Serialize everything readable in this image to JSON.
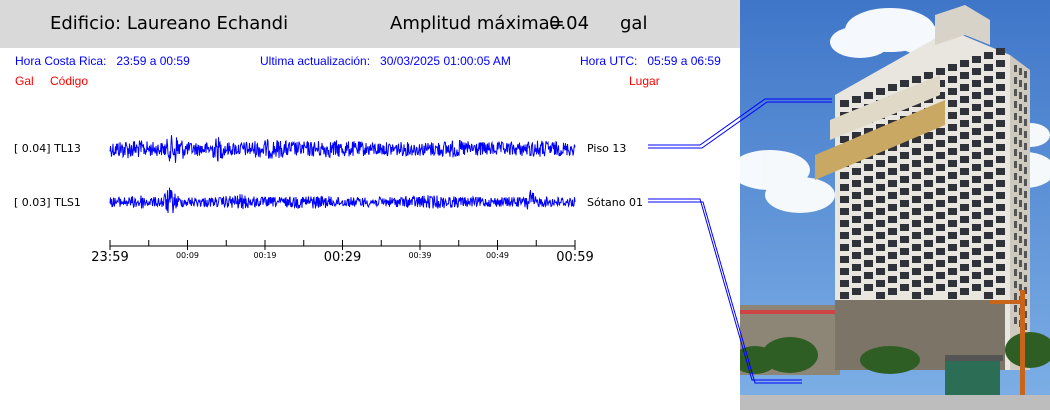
{
  "header": {
    "building_label": "Edificio: Laureano Echandi",
    "amplitude_label": "Amplitud máxima=",
    "amplitude_value": "0.04",
    "amplitude_unit": "gal"
  },
  "info": {
    "local_label": "Hora Costa Rica:",
    "local_range": "23:59 a 00:59",
    "update_label": "Ultima actualización:",
    "update_value": "30/03/2025 01:00:05 AM",
    "utc_label": "Hora UTC:",
    "utc_range": "05:59 a 06:59"
  },
  "columns": {
    "gal": "Gal",
    "code": "Código",
    "place": "Lugar"
  },
  "channels": [
    {
      "label": "[   0.04] TL13",
      "place": "Piso 13",
      "color": "#0000ff"
    },
    {
      "label": "[   0.03] TLS1",
      "place": "Sótano 01",
      "color": "#0000ff"
    }
  ],
  "time_axis": {
    "ticks": [
      "23:59",
      "00:09",
      "00:19",
      "00:29",
      "00:39",
      "00:49",
      "00:59"
    ],
    "major": [
      true,
      false,
      false,
      true,
      false,
      false,
      true
    ]
  },
  "colors": {
    "header_bg": "#d9d9d9",
    "info_text": "#0000ff",
    "column_text": "#ff0000",
    "trace": "#0000ff"
  }
}
